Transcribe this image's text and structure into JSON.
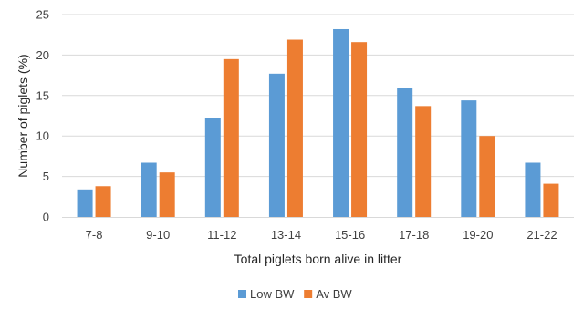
{
  "chart_data": {
    "type": "bar",
    "title": "",
    "xlabel": "Total piglets born alive in litter",
    "ylabel": "Number of piglets (%)",
    "categories": [
      "7-8",
      "9-10",
      "11-12",
      "13-14",
      "15-16",
      "17-18",
      "19-20",
      "21-22"
    ],
    "series": [
      {
        "name": "Low BW",
        "color": "#5B9BD5",
        "values": [
          3.4,
          6.7,
          12.2,
          17.7,
          23.2,
          15.9,
          14.4,
          6.7
        ]
      },
      {
        "name": "Av BW",
        "color": "#ED7D31",
        "values": [
          3.8,
          5.5,
          19.5,
          21.9,
          21.6,
          13.7,
          10.0,
          4.1
        ]
      }
    ],
    "ylim": [
      0,
      25
    ],
    "yticks": [
      0,
      5,
      10,
      15,
      20,
      25
    ],
    "grid": true,
    "gridline_color": "#D9D9D9",
    "legend_position": "bottom"
  }
}
